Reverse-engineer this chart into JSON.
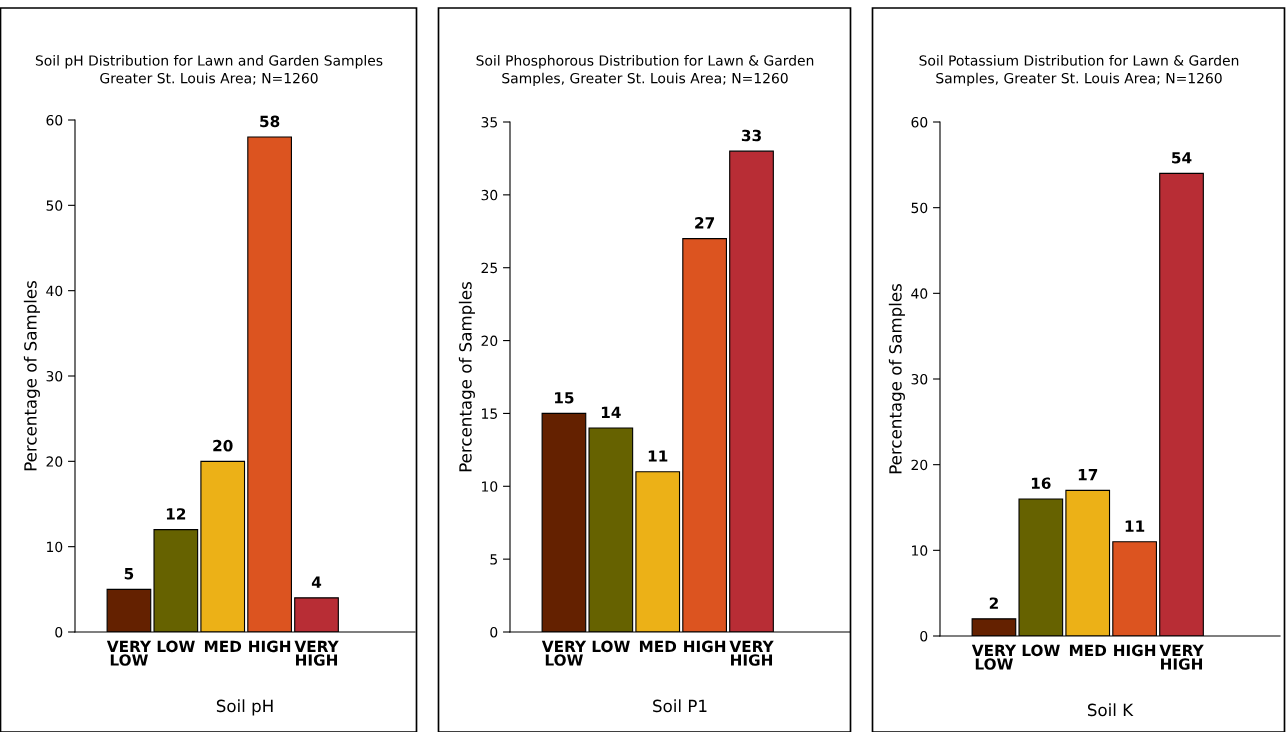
{
  "chart_data": [
    {
      "type": "bar",
      "title": "Soil pH Distribution for Lawn and Garden Samples\nGreater St. Louis Area; N=1260",
      "xlabel": "Soil pH",
      "ylabel": "Percentage of Samples",
      "categories": [
        "VERY\nLOW",
        "LOW",
        "MED",
        "HIGH",
        "VERY\nHIGH"
      ],
      "values": [
        5,
        12,
        20,
        58,
        4
      ],
      "colors": [
        "#642100",
        "#666200",
        "#ecb117",
        "#dc5420",
        "#b82d35"
      ],
      "ylim": [
        0,
        60
      ],
      "yticks": [
        0,
        10,
        20,
        30,
        40,
        50,
        60
      ],
      "data_labels": true,
      "grid": false,
      "legend": false
    },
    {
      "type": "bar",
      "title": "Soil Phosphorous Distribution for Lawn & Garden\nSamples, Greater St. Louis Area; N=1260",
      "xlabel": "Soil P1",
      "ylabel": "Percentage of Samples",
      "categories": [
        "VERY\nLOW",
        "LOW",
        "MED",
        "HIGH",
        "VERY\nHIGH"
      ],
      "values": [
        15,
        14,
        11,
        27,
        33
      ],
      "colors": [
        "#642100",
        "#666200",
        "#ecb117",
        "#dc5420",
        "#b82d35"
      ],
      "ylim": [
        0,
        35
      ],
      "yticks": [
        0,
        5,
        10,
        15,
        20,
        25,
        30,
        35
      ],
      "data_labels": true,
      "grid": false,
      "legend": false
    },
    {
      "type": "bar",
      "title": "Soil Potassium Distribution for Lawn & Garden\nSamples, Greater St. Louis Area; N=1260",
      "xlabel": "Soil K",
      "ylabel": "Percentage of Samples",
      "categories": [
        "VERY\nLOW",
        "LOW",
        "MED",
        "HIGH",
        "VERY\nHIGH"
      ],
      "values": [
        2,
        16,
        17,
        11,
        54
      ],
      "colors": [
        "#642100",
        "#666200",
        "#ecb117",
        "#dc5420",
        "#b82d35"
      ],
      "ylim": [
        0,
        60
      ],
      "yticks": [
        0,
        10,
        20,
        30,
        40,
        50,
        60
      ],
      "data_labels": true,
      "grid": false,
      "legend": false
    }
  ]
}
